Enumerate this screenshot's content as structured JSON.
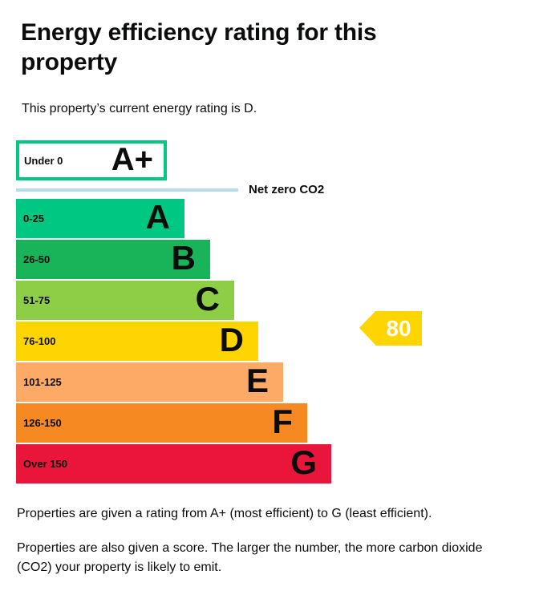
{
  "page": {
    "title": "Energy efficiency rating for this property",
    "subtitle": "This property’s current energy rating is D.",
    "footer_para1": "Properties are given a rating from A+ (most efficient) to G (least efficient).",
    "footer_para2": "Properties are also given a score. The larger the number, the more carbon dioxide (CO2) your property is likely to emit."
  },
  "chart_data": {
    "type": "bar",
    "title": "Energy efficiency rating for this property",
    "current_rating_band": "D",
    "current_score": 80,
    "net_zero_label": "Net zero CO2",
    "net_zero_line_color": "#b7dcee",
    "text_color": "#0b0c0c",
    "score_arrow": {
      "value": "80",
      "color": "#ffd500",
      "text_color": "#ffffff",
      "points_to_band": "D"
    },
    "bands": [
      {
        "letter": "A+",
        "range_label": "Under 0",
        "color": "#00c781",
        "style": "outlined-white-fill"
      },
      {
        "letter": "A",
        "range_label": "0-25",
        "color": "#00c781"
      },
      {
        "letter": "B",
        "range_label": "26-50",
        "color": "#19b459"
      },
      {
        "letter": "C",
        "range_label": "51-75",
        "color": "#8dce46"
      },
      {
        "letter": "D",
        "range_label": "76-100",
        "color": "#ffd500"
      },
      {
        "letter": "E",
        "range_label": "101-125",
        "color": "#fcaa65"
      },
      {
        "letter": "F",
        "range_label": "126-150",
        "color": "#f78923"
      },
      {
        "letter": "G",
        "range_label": "Over 150",
        "color": "#e9153b"
      }
    ],
    "layout": {
      "legend": "none",
      "grid": false,
      "orientation": "horizontal"
    }
  }
}
